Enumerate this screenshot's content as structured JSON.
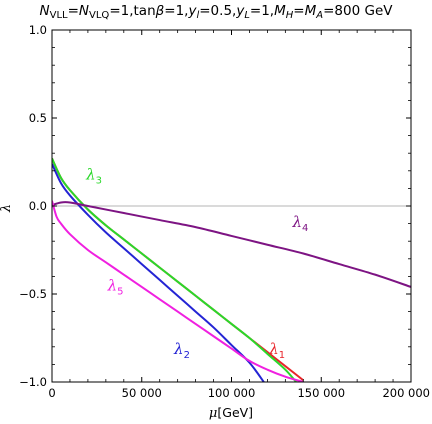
{
  "chart_data": {
    "type": "line",
    "title": {
      "parts": [
        {
          "text": "N",
          "italic": true
        },
        {
          "text": "VLL",
          "sub": true
        },
        {
          "text": "="
        },
        {
          "text": "N",
          "italic": true
        },
        {
          "text": "VLQ",
          "sub": true
        },
        {
          "text": "=1,tan"
        },
        {
          "text": "β",
          "italic": true
        },
        {
          "text": "=1,"
        },
        {
          "text": "y",
          "italic": true
        },
        {
          "text": "l",
          "sub": true,
          "italic": true
        },
        {
          "text": "=0.5,"
        },
        {
          "text": "y",
          "italic": true
        },
        {
          "text": "L",
          "sub": true,
          "italic": true
        },
        {
          "text": "=1,"
        },
        {
          "text": "M",
          "italic": true
        },
        {
          "text": "H",
          "sub": true,
          "italic": true
        },
        {
          "text": "="
        },
        {
          "text": "M",
          "italic": true
        },
        {
          "text": "A",
          "sub": true,
          "italic": true
        },
        {
          "text": "=800 GeV"
        }
      ]
    },
    "xlabel": {
      "main": "μ",
      "unit": "[GeV]"
    },
    "ylabel": "λ",
    "xlim": [
      0,
      200000
    ],
    "ylim": [
      -1.0,
      1.0
    ],
    "x_ticks": [
      0,
      50000,
      100000,
      150000,
      200000
    ],
    "x_tick_labels": [
      "0",
      "50 000",
      "100 000",
      "150 000",
      "200 000"
    ],
    "y_ticks": [
      -1.0,
      -0.5,
      0.0,
      0.5,
      1.0
    ],
    "y_tick_labels": [
      "−1.0",
      "−0.5",
      "0.0",
      "0.5",
      "1.0"
    ],
    "zero_line": true,
    "series": [
      {
        "name": "λ1",
        "base": "λ",
        "sub": "1",
        "color": "#e8262b",
        "label_at": [
          121000,
          -0.84
        ],
        "x": [
          0,
          5000,
          10000,
          20000,
          30000,
          40000,
          50000,
          60000,
          70000,
          80000,
          90000,
          100000,
          110000,
          120000,
          130000,
          140000
        ],
        "y": [
          0.27,
          0.16,
          0.09,
          -0.02,
          -0.11,
          -0.19,
          -0.27,
          -0.35,
          -0.43,
          -0.51,
          -0.59,
          -0.67,
          -0.75,
          -0.83,
          -0.91,
          -0.99
        ]
      },
      {
        "name": "λ2",
        "base": "λ",
        "sub": "2",
        "color": "#2424d4",
        "label_at": [
          68000,
          -0.84
        ],
        "x": [
          0,
          5000,
          10000,
          20000,
          30000,
          40000,
          50000,
          60000,
          70000,
          80000,
          90000,
          100000,
          110000,
          118000
        ],
        "y": [
          0.24,
          0.13,
          0.06,
          -0.05,
          -0.15,
          -0.24,
          -0.33,
          -0.42,
          -0.51,
          -0.6,
          -0.69,
          -0.79,
          -0.89,
          -1.0
        ]
      },
      {
        "name": "λ3",
        "base": "λ",
        "sub": "3",
        "color": "#2ad82a",
        "label_at": [
          19000,
          0.15
        ],
        "x": [
          0,
          5000,
          10000,
          20000,
          30000,
          40000,
          50000,
          60000,
          70000,
          80000,
          90000,
          100000,
          110000,
          120000,
          130000,
          136000
        ],
        "y": [
          0.27,
          0.16,
          0.09,
          -0.02,
          -0.11,
          -0.19,
          -0.27,
          -0.35,
          -0.43,
          -0.51,
          -0.59,
          -0.67,
          -0.75,
          -0.84,
          -0.93,
          -1.0
        ]
      },
      {
        "name": "λ4",
        "base": "λ",
        "sub": "4",
        "color": "#7d1483",
        "label_at": [
          134000,
          -0.12
        ],
        "x": [
          0,
          5000,
          10000,
          20000,
          40000,
          60000,
          80000,
          100000,
          120000,
          140000,
          160000,
          180000,
          200000
        ],
        "y": [
          0.005,
          0.02,
          0.02,
          0.0,
          -0.04,
          -0.08,
          -0.12,
          -0.17,
          -0.22,
          -0.27,
          -0.33,
          -0.39,
          -0.46
        ]
      },
      {
        "name": "λ5",
        "base": "λ",
        "sub": "5",
        "color": "#f020e0",
        "label_at": [
          31000,
          -0.48
        ],
        "x": [
          0,
          2500,
          5000,
          10000,
          20000,
          30000,
          40000,
          50000,
          60000,
          70000,
          80000,
          90000,
          100000,
          110000,
          120000,
          130000,
          140000
        ],
        "y": [
          0.03,
          -0.06,
          -0.1,
          -0.16,
          -0.25,
          -0.32,
          -0.39,
          -0.46,
          -0.53,
          -0.6,
          -0.67,
          -0.74,
          -0.81,
          -0.88,
          -0.93,
          -0.97,
          -1.0
        ]
      }
    ]
  }
}
